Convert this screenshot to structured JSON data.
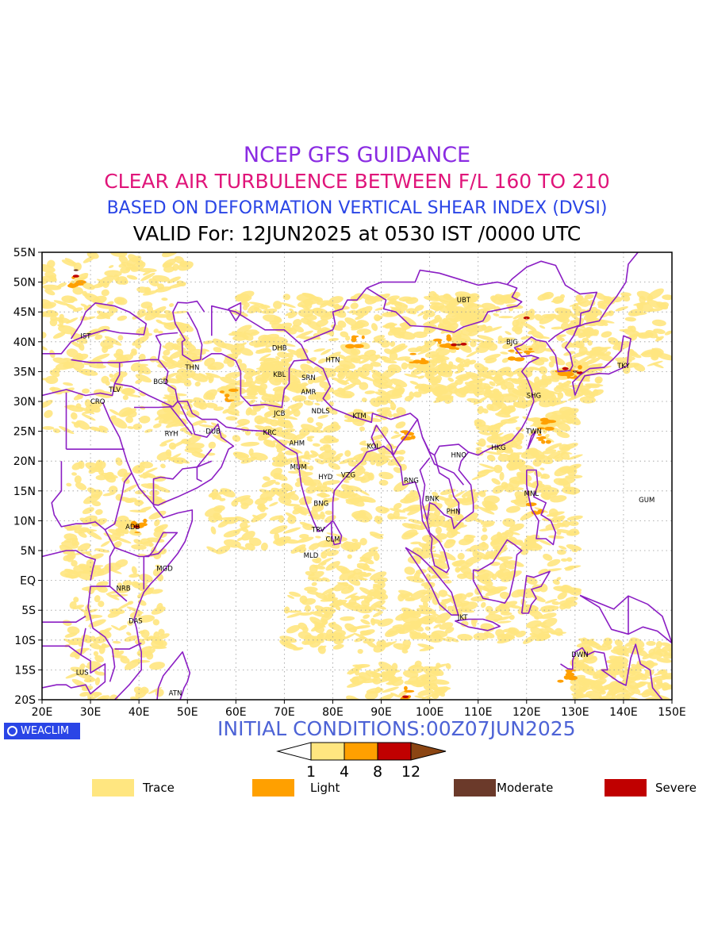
{
  "title": {
    "line1": "NCEP GFS GUIDANCE",
    "line2": "CLEAR AIR TURBULENCE BETWEEN F/L 160 TO 210",
    "line3": "BASED ON DEFORMATION VERTICAL SHEAR INDEX (DVSI)",
    "line4": "VALID For: 12JUN2025 at 0530 IST /0000 UTC"
  },
  "colors": {
    "line1": "#8a2be2",
    "line2": "#e0157a",
    "line3": "#2a45e6",
    "line4": "#000000",
    "border": "#8b1ec4",
    "trace": "#ffe680",
    "light": "#ffa000",
    "moderate": "#6b3a2a",
    "severe": "#c00000",
    "strong": "#8b4513",
    "watermark": "#2a45e6"
  },
  "map": {
    "lat_ticks": [
      "55N",
      "50N",
      "45N",
      "40N",
      "35N",
      "30N",
      "25N",
      "20N",
      "15N",
      "10N",
      "5N",
      "EQ",
      "5S",
      "10S",
      "15S",
      "20S"
    ],
    "lon_ticks": [
      "20E",
      "30E",
      "40E",
      "50E",
      "60E",
      "70E",
      "80E",
      "90E",
      "100E",
      "110E",
      "120E",
      "130E",
      "140E",
      "150E"
    ],
    "stations": [
      {
        "code": "UBT",
        "lon": 107,
        "lat": 47
      },
      {
        "code": "IST",
        "lon": 29,
        "lat": 41
      },
      {
        "code": "BJG",
        "lon": 117,
        "lat": 40
      },
      {
        "code": "DHB",
        "lon": 69,
        "lat": 39
      },
      {
        "code": "HTN",
        "lon": 80,
        "lat": 37
      },
      {
        "code": "TKY",
        "lon": 140,
        "lat": 36
      },
      {
        "code": "THN",
        "lon": 51,
        "lat": 35.7
      },
      {
        "code": "KBL",
        "lon": 69,
        "lat": 34.5
      },
      {
        "code": "SRN",
        "lon": 75,
        "lat": 34
      },
      {
        "code": "BGD",
        "lon": 44.5,
        "lat": 33.3
      },
      {
        "code": "TLV",
        "lon": 35,
        "lat": 32
      },
      {
        "code": "AMR",
        "lon": 75,
        "lat": 31.6
      },
      {
        "code": "SHG",
        "lon": 121.5,
        "lat": 31
      },
      {
        "code": "CRO",
        "lon": 31.5,
        "lat": 30
      },
      {
        "code": "JCB",
        "lon": 69,
        "lat": 28
      },
      {
        "code": "NDLS",
        "lon": 77.5,
        "lat": 28.4
      },
      {
        "code": "KTM",
        "lon": 85.5,
        "lat": 27.6
      },
      {
        "code": "RYH",
        "lon": 46.7,
        "lat": 24.6
      },
      {
        "code": "DUB",
        "lon": 55.3,
        "lat": 25
      },
      {
        "code": "TWN",
        "lon": 121.5,
        "lat": 25
      },
      {
        "code": "KRC",
        "lon": 67,
        "lat": 24.8
      },
      {
        "code": "AHM",
        "lon": 72.6,
        "lat": 23
      },
      {
        "code": "KOL",
        "lon": 88.4,
        "lat": 22.5
      },
      {
        "code": "HKG",
        "lon": 114.2,
        "lat": 22.3
      },
      {
        "code": "HNO",
        "lon": 106,
        "lat": 21
      },
      {
        "code": "MUM",
        "lon": 72.9,
        "lat": 19
      },
      {
        "code": "HYD",
        "lon": 78.5,
        "lat": 17.4
      },
      {
        "code": "VZG",
        "lon": 83.2,
        "lat": 17.7
      },
      {
        "code": "RNG",
        "lon": 96.2,
        "lat": 16.8
      },
      {
        "code": "BNK",
        "lon": 100.5,
        "lat": 13.7
      },
      {
        "code": "MNL",
        "lon": 121,
        "lat": 14.6
      },
      {
        "code": "GUM",
        "lon": 144.8,
        "lat": 13.5
      },
      {
        "code": "BNG",
        "lon": 77.6,
        "lat": 12.9
      },
      {
        "code": "PHN",
        "lon": 104.9,
        "lat": 11.6
      },
      {
        "code": "ADB",
        "lon": 38.7,
        "lat": 9
      },
      {
        "code": "TRV",
        "lon": 77,
        "lat": 8.5
      },
      {
        "code": "CLM",
        "lon": 80,
        "lat": 6.9
      },
      {
        "code": "MLD",
        "lon": 75.5,
        "lat": 4.2
      },
      {
        "code": "MGD",
        "lon": 45.3,
        "lat": 2
      },
      {
        "code": "NRB",
        "lon": 36.8,
        "lat": -1.3
      },
      {
        "code": "DAS",
        "lon": 39.3,
        "lat": -6.8
      },
      {
        "code": "JKT",
        "lon": 106.8,
        "lat": -6.2
      },
      {
        "code": "DWN",
        "lon": 131,
        "lat": -12.4
      },
      {
        "code": "LUS",
        "lon": 28.3,
        "lat": -15.4
      },
      {
        "code": "ATN",
        "lon": 47.5,
        "lat": -18.9
      }
    ]
  },
  "footer": {
    "watermark": "WEACLIM",
    "initial_conditions": "INITIAL CONDITIONS:00Z07JUN2025"
  },
  "colorbar": {
    "ticks": [
      "1",
      "4",
      "8",
      "12"
    ]
  },
  "legend": [
    {
      "label": "Trace",
      "color": "#ffe680"
    },
    {
      "label": "Light",
      "color": "#ffa000"
    },
    {
      "label": "Moderate",
      "color": "#6b3a2a"
    },
    {
      "label": "Severe",
      "color": "#c00000"
    }
  ]
}
